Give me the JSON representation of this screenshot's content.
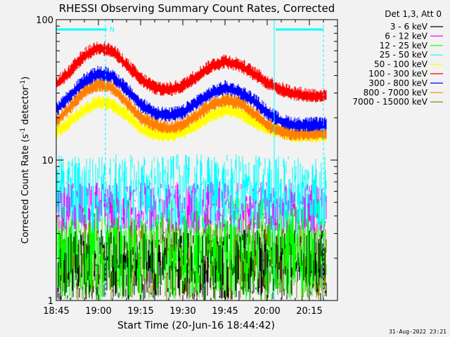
{
  "chart_data": {
    "type": "line",
    "title": "RHESSI Observing Summary Count Rates, Corrected",
    "xlabel": "Start Time (20-Jun-16 18:44:42)",
    "ylabel": "Corrected Count Rate (s",
    "ylabel_sup1": "-1",
    "ylabel_mid": " detector",
    "ylabel_sup2": "-1",
    "ylabel_end": ")",
    "y_scale": "log",
    "ylim": [
      1,
      100
    ],
    "xlim_minutes": [
      0,
      100
    ],
    "x_ticks": [
      {
        "minute": 0,
        "label": "18:45"
      },
      {
        "minute": 15,
        "label": "19:00"
      },
      {
        "minute": 30,
        "label": "19:15"
      },
      {
        "minute": 45,
        "label": "19:30"
      },
      {
        "minute": 60,
        "label": "19:45"
      },
      {
        "minute": 75,
        "label": "20:00"
      },
      {
        "minute": 90,
        "label": "20:15"
      }
    ],
    "y_ticks": [
      {
        "value": 1,
        "label": "1"
      },
      {
        "value": 10,
        "label": "10"
      },
      {
        "value": 100,
        "label": "100"
      }
    ],
    "legend_header": "Det 1,3, Att 0",
    "legend_position": "top-right-outside",
    "series": [
      {
        "name": "3 - 6 keV",
        "color": "#000000",
        "kind": "noise",
        "low": 1.0,
        "high": 3.2
      },
      {
        "name": "6 - 12 keV",
        "color": "#ff00ff",
        "kind": "noise",
        "low": 3.0,
        "high": 7.0
      },
      {
        "name": "12 - 25 keV",
        "color": "#00ff00",
        "kind": "noise",
        "low": 1.0,
        "high": 5.5
      },
      {
        "name": "25 - 50 keV",
        "color": "#00ffff",
        "kind": "noise",
        "low": 3.0,
        "high": 11.0
      },
      {
        "name": "50 - 100 keV",
        "color": "#ffff00",
        "kind": "curve",
        "x": [
          0,
          5,
          10,
          15,
          20,
          25,
          30,
          35,
          40,
          45,
          50,
          55,
          60,
          65,
          70,
          75,
          80,
          85,
          90,
          95
        ],
        "y": [
          16,
          19,
          23,
          26,
          25,
          21,
          17,
          15.5,
          15,
          16,
          18,
          21,
          23,
          22,
          19,
          17,
          16,
          15,
          15,
          15
        ]
      },
      {
        "name": "100 - 300 keV",
        "color": "#ff0000",
        "kind": "curve",
        "x": [
          0,
          5,
          10,
          15,
          20,
          25,
          30,
          35,
          40,
          45,
          50,
          55,
          60,
          65,
          70,
          75,
          80,
          85,
          90,
          95
        ],
        "y": [
          35,
          43,
          56,
          64,
          60,
          48,
          38,
          33,
          32,
          34,
          40,
          47,
          51,
          48,
          42,
          36,
          32,
          30,
          29,
          29
        ]
      },
      {
        "name": "300 - 800 keV",
        "color": "#0000ff",
        "kind": "curve",
        "x": [
          0,
          5,
          10,
          15,
          20,
          25,
          30,
          35,
          40,
          45,
          50,
          55,
          60,
          65,
          70,
          75,
          80,
          85,
          90,
          95
        ],
        "y": [
          23,
          29,
          37,
          42,
          40,
          32,
          25,
          22,
          21,
          22,
          26,
          30,
          33,
          31,
          27,
          22,
          19,
          18,
          18,
          18
        ]
      },
      {
        "name": "800 - 7000 keV",
        "color": "#ff8000",
        "kind": "curve",
        "x": [
          0,
          5,
          10,
          15,
          20,
          25,
          30,
          35,
          40,
          45,
          50,
          55,
          60,
          65,
          70,
          75,
          80,
          85,
          90,
          95
        ],
        "y": [
          19,
          24,
          31,
          35,
          33,
          26,
          20,
          18,
          17,
          18,
          21,
          25,
          27,
          26,
          22,
          18,
          16,
          15.5,
          15.5,
          15.5
        ]
      },
      {
        "name": "7000 - 15000 keV",
        "color": "#808000",
        "kind": "noise",
        "low": 1.0,
        "high": 4.0
      }
    ],
    "annotations": {
      "flag_label": "N",
      "flag_color": "#00ffff",
      "flag_bars": [
        [
          0,
          18
        ],
        [
          78,
          95
        ]
      ],
      "solid_lines_minute": [
        0,
        77.5
      ],
      "dashed_lines_minute": [
        17.5,
        95
      ]
    },
    "footer_timestamp": "31-Aug-2022 23:21"
  }
}
